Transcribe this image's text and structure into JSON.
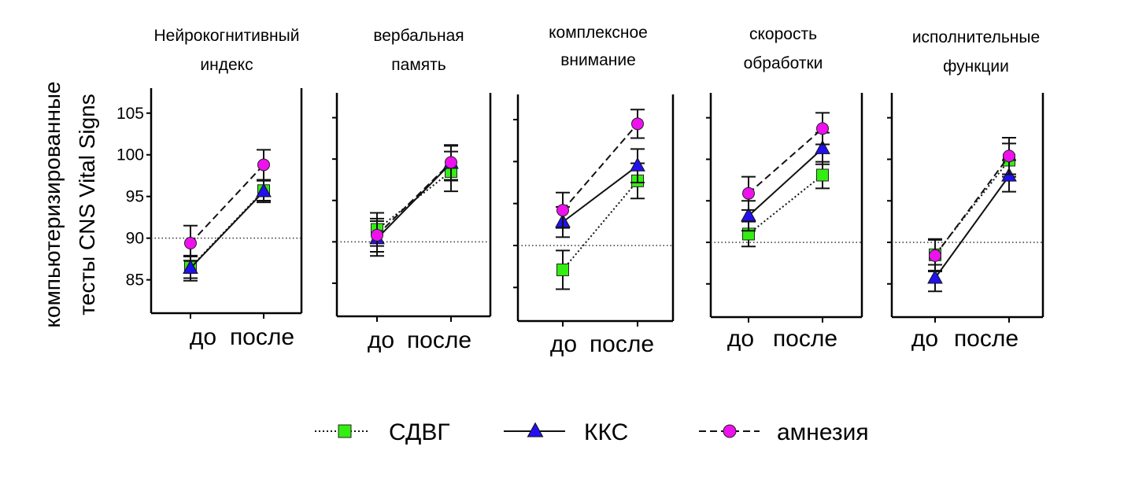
{
  "chart_data": {
    "type": "line",
    "ylabel_lines": [
      "компьютеризированные",
      "тесты CNS Vital Signs"
    ],
    "x": [
      "до",
      "после"
    ],
    "ylim": [
      81,
      108
    ],
    "yticks": [
      85,
      90,
      95,
      100,
      105
    ],
    "reference_line": 90,
    "legend": [
      {
        "name": "СДВГ",
        "color": "#33ee11",
        "marker": "square",
        "line": "dotted"
      },
      {
        "name": "ККС",
        "color": "#2211ee",
        "marker": "triangle",
        "line": "solid"
      },
      {
        "name": "амнезия",
        "color": "#ee11ee",
        "marker": "circle",
        "line": "dashed"
      }
    ],
    "panels": [
      {
        "title_lines": [
          "Нейрокогнитивный",
          "индекс"
        ],
        "series": [
          {
            "name": "СДВГ",
            "values": [
              86.5,
              95.7
            ],
            "errors": [
              1.3,
              1.2
            ]
          },
          {
            "name": "ККС",
            "values": [
              86.4,
              95.6
            ],
            "errors": [
              1.5,
              1.3
            ]
          },
          {
            "name": "амнезия",
            "values": [
              89.4,
              98.8
            ],
            "errors": [
              2.1,
              1.8
            ]
          }
        ]
      },
      {
        "title_lines": [
          "вербальная",
          "память"
        ],
        "series": [
          {
            "name": "СДВГ",
            "values": [
              91.5,
              98.5
            ],
            "errors": [
              2.0,
              2.4
            ]
          },
          {
            "name": "ККС",
            "values": [
              90.4,
              99.5
            ],
            "errors": [
              2.1,
              2.1
            ]
          },
          {
            "name": "амнезия",
            "values": [
              90.8,
              99.6
            ],
            "errors": [
              2.0,
              2.1
            ]
          }
        ]
      },
      {
        "title_lines": [
          "комплексное",
          "внимание"
        ],
        "series": [
          {
            "name": "СДВГ",
            "values": [
              87.1,
              97.7
            ],
            "errors": [
              2.3,
              2.1
            ]
          },
          {
            "name": "ККС",
            "values": [
              92.8,
              99.5
            ],
            "errors": [
              1.8,
              2.0
            ]
          },
          {
            "name": "амнезия",
            "values": [
              94.2,
              104.5
            ],
            "errors": [
              2.1,
              1.7
            ]
          }
        ]
      },
      {
        "title_lines": [
          "скорость",
          "обработки"
        ],
        "series": [
          {
            "name": "СДВГ",
            "values": [
              91.0,
              98.1
            ],
            "errors": [
              1.5,
              1.6
            ]
          },
          {
            "name": "ККС",
            "values": [
              93.2,
              101.3
            ],
            "errors": [
              1.8,
              1.9
            ]
          },
          {
            "name": "амнезия",
            "values": [
              95.9,
              103.7
            ],
            "errors": [
              2.0,
              1.9
            ]
          }
        ]
      },
      {
        "title_lines": [
          "исполнительные",
          "функции"
        ],
        "series": [
          {
            "name": "СДВГ",
            "values": [
              88.5,
              99.9
            ],
            "errors": [
              1.9,
              2.0
            ]
          },
          {
            "name": "ККС",
            "values": [
              85.7,
              98.0
            ],
            "errors": [
              1.6,
              1.9
            ]
          },
          {
            "name": "амнезия",
            "values": [
              88.4,
              100.4
            ],
            "errors": [
              1.9,
              2.2
            ]
          }
        ]
      }
    ]
  }
}
